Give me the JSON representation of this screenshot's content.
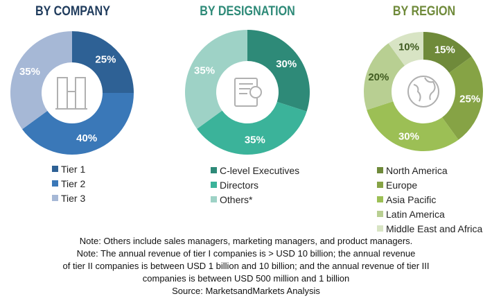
{
  "chart_data": [
    {
      "type": "pie",
      "variant": "donut",
      "title": "BY COMPANY",
      "title_color": "#1f3b5c",
      "center_icon": "buildings-icon",
      "slices": [
        {
          "label": "Tier 1",
          "value": 25,
          "color": "#2e6195",
          "text_color": "#ffffff"
        },
        {
          "label": "Tier 2",
          "value": 40,
          "color": "#3a78b8",
          "text_color": "#ffffff"
        },
        {
          "label": "Tier 3",
          "value": 35,
          "color": "#a6b8d6",
          "text_color": "#ffffff"
        }
      ]
    },
    {
      "type": "pie",
      "variant": "donut",
      "title": "BY DESIGNATION",
      "title_color": "#2e8a78",
      "center_icon": "certificate-icon",
      "slices": [
        {
          "label": "C-level Executives",
          "value": 30,
          "color": "#2e8a78",
          "text_color": "#ffffff"
        },
        {
          "label": "Directors",
          "value": 35,
          "color": "#3bb39a",
          "text_color": "#ffffff"
        },
        {
          "label": "Others*",
          "value": 35,
          "color": "#9ed2c6",
          "text_color": "#ffffff"
        }
      ]
    },
    {
      "type": "pie",
      "variant": "donut",
      "title": "BY REGION",
      "title_color": "#6f8a3a",
      "center_icon": "globe-icon",
      "slices": [
        {
          "label": "North America",
          "value": 15,
          "color": "#6f8a3a",
          "text_color": "#ffffff"
        },
        {
          "label": "Europe",
          "value": 25,
          "color": "#86a345",
          "text_color": "#ffffff"
        },
        {
          "label": "Asia Pacific",
          "value": 30,
          "color": "#9cbf55",
          "text_color": "#ffffff"
        },
        {
          "label": "Latin America",
          "value": 20,
          "color": "#b8cf92",
          "text_color": "#3f5a1f"
        },
        {
          "label": "Middle East and Africa",
          "value": 10,
          "color": "#d8e4c4",
          "text_color": "#3f5a1f"
        }
      ]
    }
  ],
  "notes": [
    "Note: Others include sales managers, marketing managers, and product managers.",
    "Note: The annual revenue of tier I companies is > USD 10 billion; the annual revenue",
    "of tier II companies is between USD 1 billion and 10 billion; and the annual revenue of tier III",
    "companies is between USD 500 million and 1 billion",
    "Source: MarketsandMarkets Analysis"
  ]
}
